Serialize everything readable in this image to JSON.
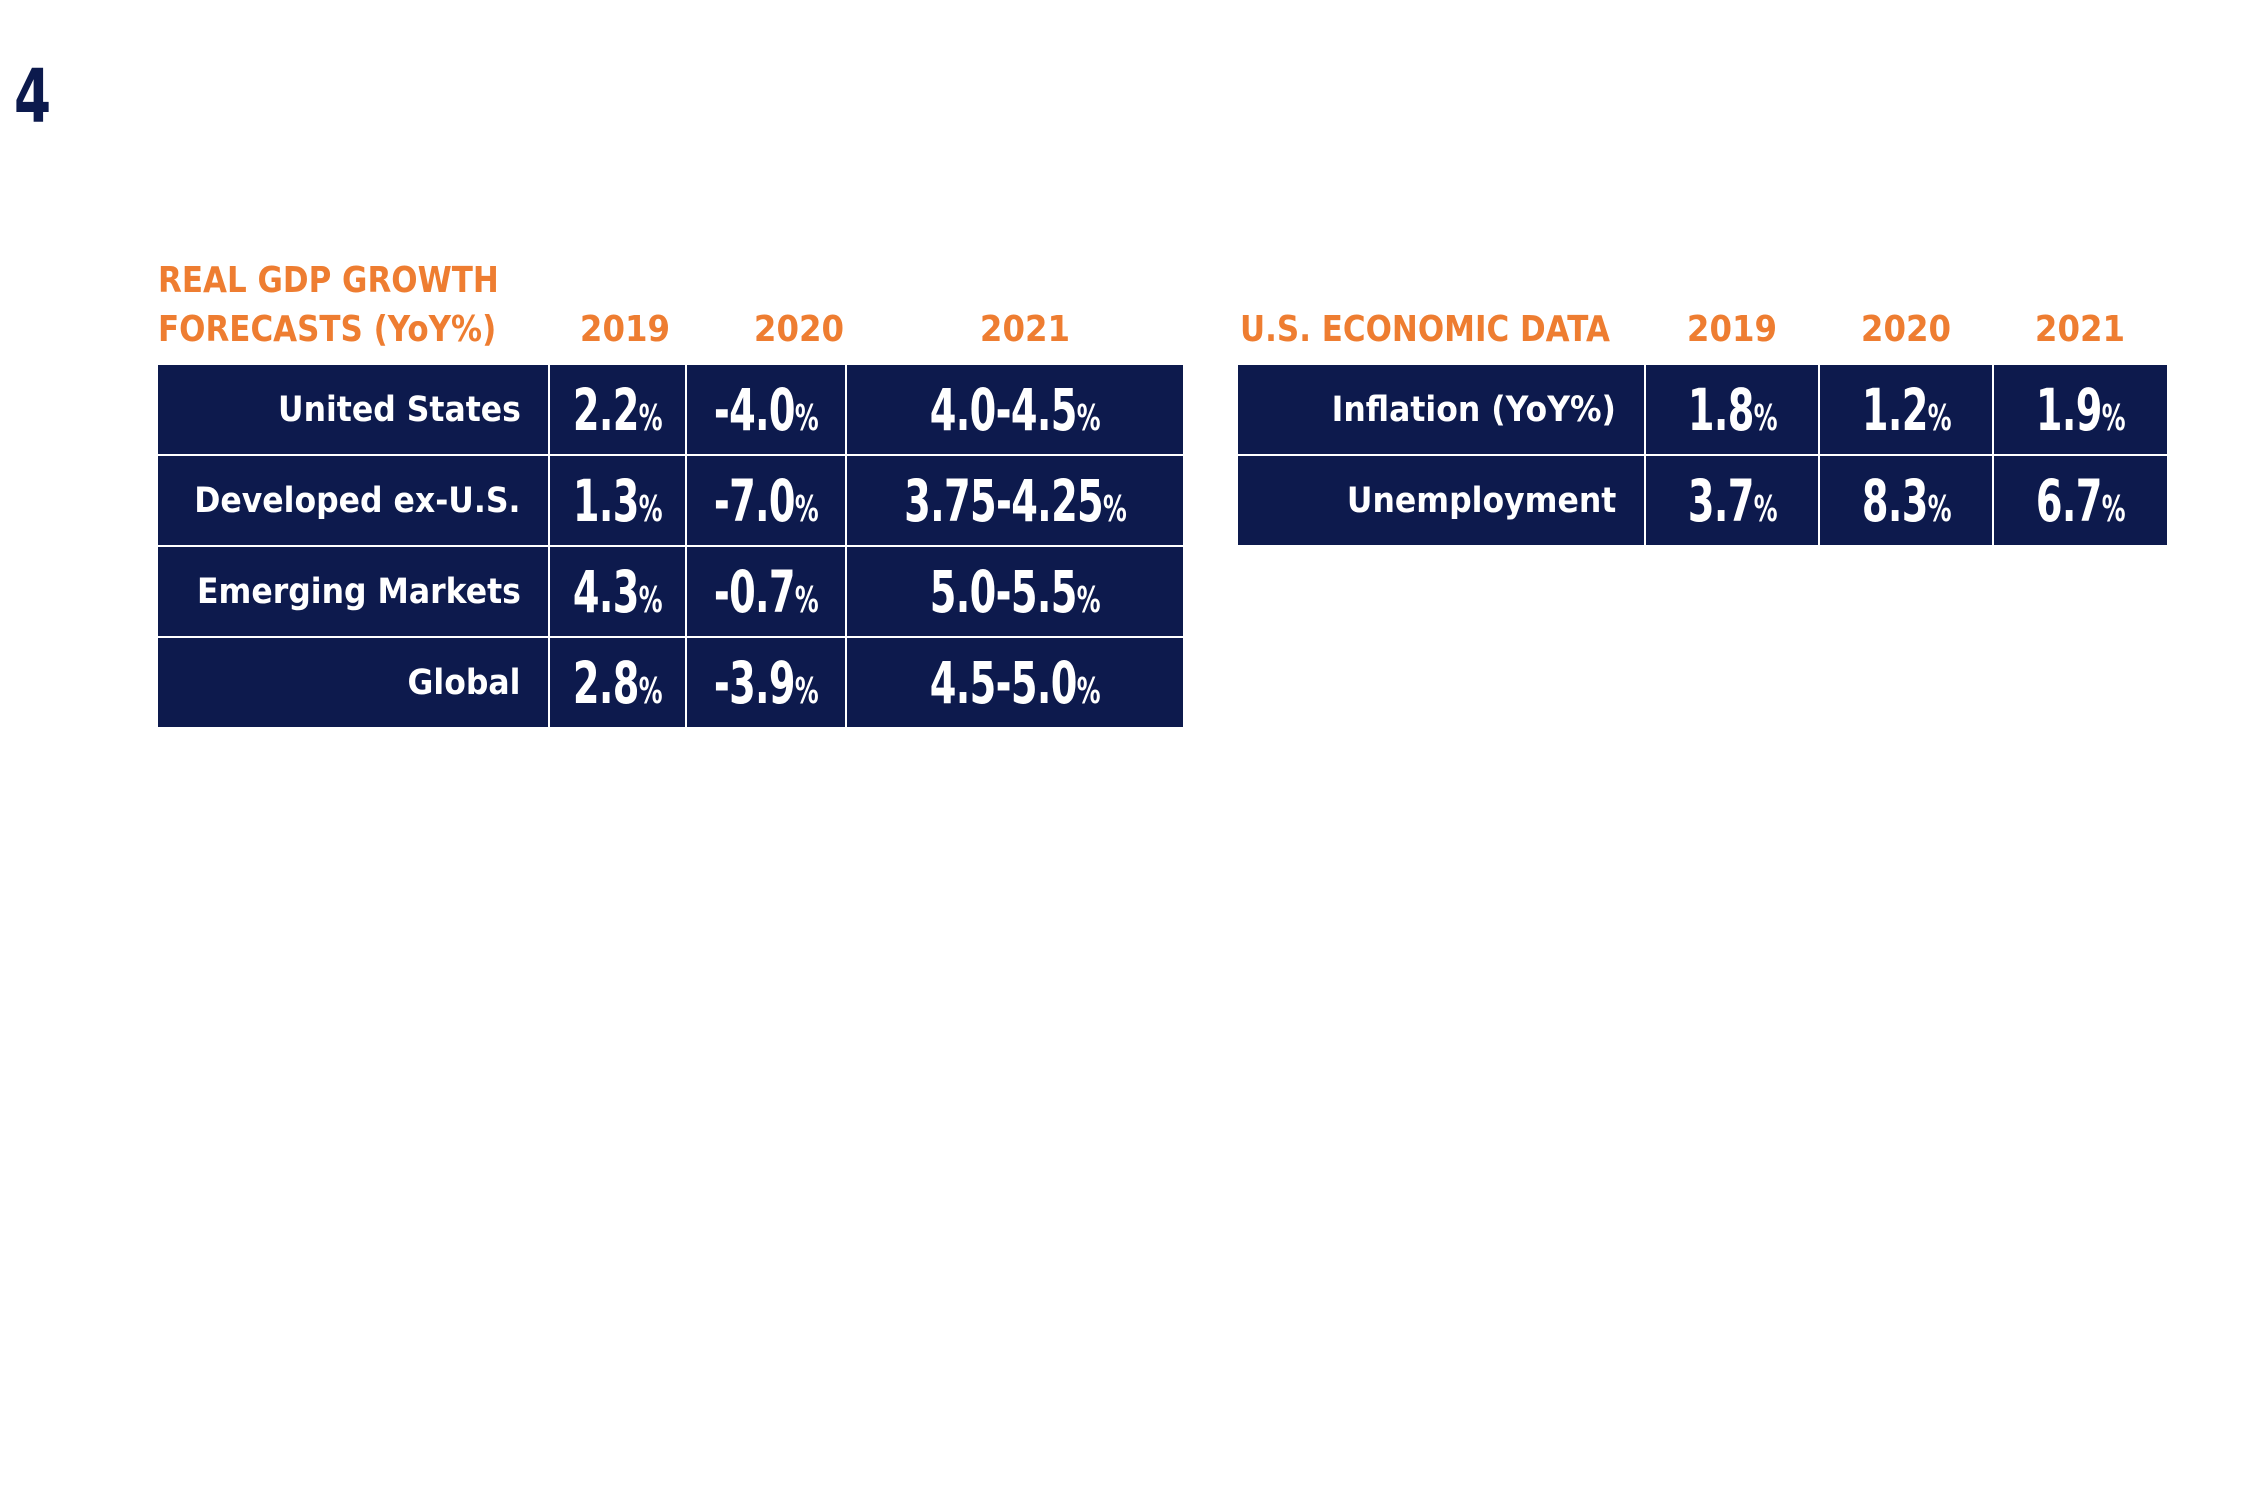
{
  "page_number": "4",
  "gdp_table": {
    "header_line1": "REAL GDP GROWTH",
    "header_line2": "FORECASTS (YoY%)",
    "years": [
      "2019",
      "2020",
      "2021"
    ],
    "rows": [
      {
        "label": "United States",
        "values": [
          "2.2",
          "-4.0",
          "4.0-4.5"
        ]
      },
      {
        "label": "Developed ex-U.S.",
        "values": [
          "1.3",
          "-7.0",
          "3.75-4.25"
        ]
      },
      {
        "label": "Emerging Markets",
        "values": [
          "4.3",
          "-0.7",
          "5.0-5.5"
        ]
      },
      {
        "label": "Global",
        "values": [
          "2.8",
          "-3.9",
          "4.5-5.0"
        ]
      }
    ],
    "unit": "%"
  },
  "econ_table": {
    "header": "U.S. ECONOMIC DATA",
    "years": [
      "2019",
      "2020",
      "2021"
    ],
    "rows": [
      {
        "label": "Inflation (YoY%)",
        "values": [
          "1.8",
          "1.2",
          "1.9"
        ]
      },
      {
        "label": "Unemployment",
        "values": [
          "3.7",
          "8.3",
          "6.7"
        ]
      }
    ],
    "unit": "%"
  },
  "colors": {
    "navy": "#0d1a4d",
    "orange": "#ee7d31"
  }
}
